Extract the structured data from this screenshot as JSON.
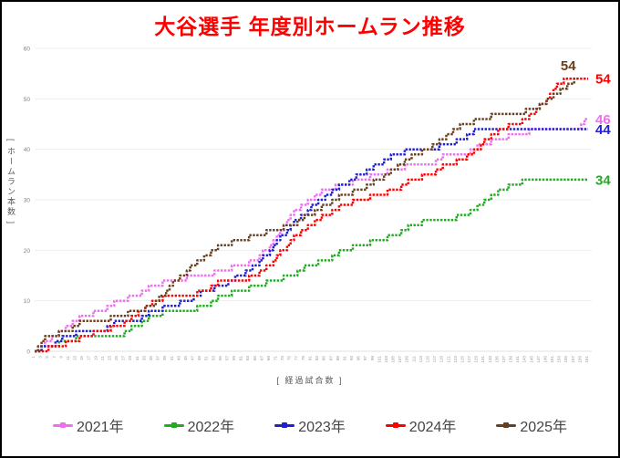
{
  "page": {
    "background": "#FFFFFF",
    "border_color": "#000000"
  },
  "chart_data": {
    "type": "line",
    "title": "大谷選手 年度別ホームラン推移",
    "title_color": "#FF0000",
    "xlabel": "[ 経過試合数 ]",
    "ylabel": "[ ホームラン本数 ]",
    "x_axis": {
      "min": 1,
      "max": 161,
      "tick_start": 1,
      "tick_end": 161,
      "tick_step": 2
    },
    "y_axis": {
      "min": 0,
      "max": 60,
      "ticks": [
        0,
        10,
        20,
        30,
        40,
        50,
        60
      ]
    },
    "grid": "horizontal-light-gray",
    "legend_position": "bottom",
    "line_style": "stepped-dotted-cumulative",
    "series": [
      {
        "name": "2021年",
        "color": "#EE6FEE",
        "final_value": 46,
        "end_label": "46",
        "label_position": "right",
        "points": [
          [
            1,
            0
          ],
          [
            5,
            2
          ],
          [
            10,
            5
          ],
          [
            15,
            7
          ],
          [
            20,
            8
          ],
          [
            25,
            10
          ],
          [
            30,
            11
          ],
          [
            35,
            13
          ],
          [
            40,
            14
          ],
          [
            50,
            15
          ],
          [
            55,
            16
          ],
          [
            60,
            17
          ],
          [
            65,
            18
          ],
          [
            70,
            22
          ],
          [
            75,
            27
          ],
          [
            80,
            30
          ],
          [
            85,
            32
          ],
          [
            90,
            33
          ],
          [
            95,
            34
          ],
          [
            100,
            35
          ],
          [
            105,
            36
          ],
          [
            110,
            37
          ],
          [
            115,
            37
          ],
          [
            120,
            39
          ],
          [
            125,
            39
          ],
          [
            130,
            41
          ],
          [
            135,
            42
          ],
          [
            140,
            43
          ],
          [
            148,
            44
          ],
          [
            158,
            44
          ],
          [
            160,
            46
          ],
          [
            161,
            46
          ]
        ]
      },
      {
        "name": "2022年",
        "color": "#22AB22",
        "final_value": 34,
        "end_label": "34",
        "label_position": "right",
        "points": [
          [
            1,
            0
          ],
          [
            5,
            1
          ],
          [
            10,
            2
          ],
          [
            15,
            3
          ],
          [
            25,
            3
          ],
          [
            30,
            5
          ],
          [
            35,
            7
          ],
          [
            40,
            8
          ],
          [
            45,
            8
          ],
          [
            50,
            9
          ],
          [
            55,
            11
          ],
          [
            60,
            12
          ],
          [
            65,
            13
          ],
          [
            70,
            14
          ],
          [
            75,
            15
          ],
          [
            80,
            17
          ],
          [
            85,
            18
          ],
          [
            90,
            20
          ],
          [
            95,
            21
          ],
          [
            100,
            22
          ],
          [
            105,
            23
          ],
          [
            110,
            25
          ],
          [
            115,
            26
          ],
          [
            120,
            26
          ],
          [
            125,
            27
          ],
          [
            130,
            29
          ],
          [
            135,
            32
          ],
          [
            140,
            33
          ],
          [
            143,
            34
          ],
          [
            161,
            34
          ]
        ]
      },
      {
        "name": "2023年",
        "color": "#2020CC",
        "final_value": 44,
        "end_label": "44",
        "label_position": "right",
        "points": [
          [
            1,
            0
          ],
          [
            5,
            1
          ],
          [
            10,
            3
          ],
          [
            15,
            4
          ],
          [
            20,
            4
          ],
          [
            25,
            6
          ],
          [
            30,
            6
          ],
          [
            35,
            8
          ],
          [
            40,
            9
          ],
          [
            45,
            10
          ],
          [
            50,
            12
          ],
          [
            55,
            13
          ],
          [
            60,
            15
          ],
          [
            65,
            17
          ],
          [
            70,
            21
          ],
          [
            75,
            25
          ],
          [
            80,
            28
          ],
          [
            85,
            31
          ],
          [
            90,
            33
          ],
          [
            95,
            35
          ],
          [
            100,
            37
          ],
          [
            105,
            39
          ],
          [
            110,
            40
          ],
          [
            115,
            40
          ],
          [
            120,
            41
          ],
          [
            125,
            42
          ],
          [
            128,
            44
          ],
          [
            161,
            44
          ]
        ]
      },
      {
        "name": "2024年",
        "color": "#FF0000",
        "final_value": 54,
        "end_label": "54",
        "label_position": "right",
        "points": [
          [
            1,
            0
          ],
          [
            8,
            1
          ],
          [
            12,
            2
          ],
          [
            15,
            3
          ],
          [
            20,
            4
          ],
          [
            25,
            5
          ],
          [
            30,
            7
          ],
          [
            35,
            10
          ],
          [
            40,
            11
          ],
          [
            45,
            11
          ],
          [
            50,
            12
          ],
          [
            55,
            14
          ],
          [
            60,
            14
          ],
          [
            65,
            15
          ],
          [
            70,
            18
          ],
          [
            75,
            22
          ],
          [
            80,
            25
          ],
          [
            85,
            27
          ],
          [
            90,
            29
          ],
          [
            95,
            30
          ],
          [
            100,
            31
          ],
          [
            105,
            32
          ],
          [
            110,
            34
          ],
          [
            115,
            35
          ],
          [
            120,
            37
          ],
          [
            125,
            38
          ],
          [
            130,
            41
          ],
          [
            135,
            44
          ],
          [
            140,
            45
          ],
          [
            145,
            47
          ],
          [
            150,
            51
          ],
          [
            154,
            54
          ],
          [
            161,
            54
          ]
        ]
      },
      {
        "name": "2025年",
        "color": "#69401F",
        "final_value": 54,
        "end_label": "54",
        "label_position": "above-end",
        "points": [
          [
            1,
            0
          ],
          [
            3,
            2
          ],
          [
            5,
            3
          ],
          [
            10,
            4
          ],
          [
            15,
            6
          ],
          [
            20,
            6
          ],
          [
            25,
            7
          ],
          [
            30,
            8
          ],
          [
            35,
            9
          ],
          [
            40,
            13
          ],
          [
            45,
            16
          ],
          [
            50,
            19
          ],
          [
            55,
            21
          ],
          [
            60,
            22
          ],
          [
            65,
            23
          ],
          [
            70,
            24
          ],
          [
            75,
            25
          ],
          [
            80,
            27
          ],
          [
            85,
            29
          ],
          [
            90,
            31
          ],
          [
            95,
            32
          ],
          [
            100,
            34
          ],
          [
            105,
            36
          ],
          [
            110,
            39
          ],
          [
            115,
            40
          ],
          [
            120,
            43
          ],
          [
            125,
            45
          ],
          [
            130,
            46
          ],
          [
            135,
            47
          ],
          [
            140,
            47
          ],
          [
            145,
            48
          ],
          [
            150,
            50
          ],
          [
            155,
            53
          ],
          [
            158,
            54
          ]
        ]
      }
    ]
  }
}
